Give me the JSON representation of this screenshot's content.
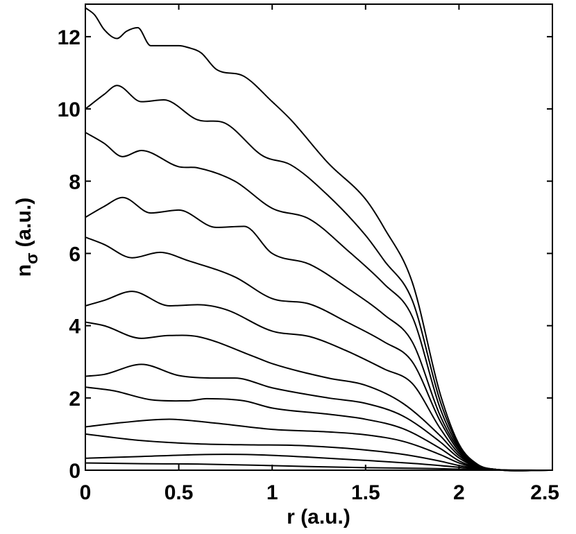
{
  "chart_data": {
    "type": "line",
    "title": "",
    "xlabel": "r (a.u.)",
    "ylabel": "n",
    "ylabel_subscript": "σ",
    "ylabel_suffix": "(a.u.)",
    "xlim": [
      0,
      2.5
    ],
    "ylim": [
      0,
      12.9
    ],
    "xticks": [
      0,
      0.5,
      1,
      1.5,
      2,
      2.5
    ],
    "xtick_labels": [
      "0",
      "0.5",
      "1",
      "1.5",
      "2",
      "2.5"
    ],
    "yticks": [
      0,
      2,
      4,
      6,
      8,
      10,
      12
    ],
    "ytick_labels": [
      "0",
      "2",
      "4",
      "6",
      "8",
      "10",
      "12"
    ],
    "grid": false,
    "line_color": "#000000",
    "series": [
      {
        "x": [
          0,
          0.3,
          0.6,
          0.9,
          1.2,
          1.5,
          1.8,
          2.0,
          2.1,
          2.2,
          2.5
        ],
        "y": [
          0.2,
          0.18,
          0.17,
          0.14,
          0.1,
          0.07,
          0.05,
          0.03,
          0.015,
          0.005,
          0
        ]
      },
      {
        "x": [
          0,
          0.3,
          0.6,
          0.75,
          0.9,
          1.2,
          1.5,
          1.8,
          2.0,
          2.1,
          2.2,
          2.5
        ],
        "y": [
          0.33,
          0.38,
          0.43,
          0.44,
          0.43,
          0.36,
          0.27,
          0.17,
          0.08,
          0.03,
          0.008,
          0
        ]
      },
      {
        "x": [
          0,
          0.3,
          0.6,
          0.9,
          1.1,
          1.3,
          1.5,
          1.7,
          1.9,
          2.0,
          2.1,
          2.2,
          2.5
        ],
        "y": [
          1.0,
          0.82,
          0.73,
          0.7,
          0.69,
          0.64,
          0.56,
          0.44,
          0.25,
          0.13,
          0.05,
          0.01,
          0
        ]
      },
      {
        "x": [
          0,
          0.2,
          0.45,
          0.7,
          1.0,
          1.3,
          1.5,
          1.7,
          1.9,
          2.0,
          2.1,
          2.2,
          2.5
        ],
        "y": [
          1.2,
          1.32,
          1.41,
          1.3,
          1.13,
          1.06,
          0.98,
          0.8,
          0.43,
          0.2,
          0.06,
          0.01,
          0
        ]
      },
      {
        "x": [
          0,
          0.15,
          0.35,
          0.55,
          0.65,
          0.85,
          1.0,
          1.3,
          1.5,
          1.7,
          1.9,
          2.0,
          2.1,
          2.2,
          2.5
        ],
        "y": [
          2.3,
          2.2,
          1.95,
          1.92,
          1.98,
          1.92,
          1.72,
          1.55,
          1.41,
          1.15,
          0.6,
          0.26,
          0.07,
          0.01,
          0
        ]
      },
      {
        "x": [
          0,
          0.1,
          0.3,
          0.5,
          0.7,
          0.8,
          1.0,
          1.3,
          1.5,
          1.7,
          1.9,
          2.0,
          2.1,
          2.2,
          2.5
        ],
        "y": [
          2.6,
          2.65,
          2.93,
          2.62,
          2.55,
          2.55,
          2.28,
          2.0,
          1.85,
          1.5,
          0.78,
          0.34,
          0.08,
          0.015,
          0
        ]
      },
      {
        "x": [
          0,
          0.1,
          0.3,
          0.45,
          0.6,
          0.9,
          1.0,
          1.3,
          1.5,
          1.7,
          1.9,
          2.0,
          2.1,
          2.2,
          2.5
        ],
        "y": [
          4.1,
          4.0,
          3.65,
          3.73,
          3.7,
          3.15,
          2.95,
          2.55,
          2.35,
          1.85,
          0.95,
          0.4,
          0.1,
          0.02,
          0
        ]
      },
      {
        "x": [
          0,
          0.1,
          0.25,
          0.45,
          0.6,
          0.75,
          1.0,
          1.2,
          1.4,
          1.6,
          1.75,
          1.9,
          2.0,
          2.1,
          2.2,
          2.5
        ],
        "y": [
          4.55,
          4.7,
          4.95,
          4.55,
          4.58,
          4.45,
          3.85,
          3.7,
          3.3,
          2.8,
          2.4,
          1.15,
          0.46,
          0.11,
          0.02,
          0
        ]
      },
      {
        "x": [
          0,
          0.1,
          0.25,
          0.4,
          0.55,
          0.8,
          1.0,
          1.2,
          1.4,
          1.6,
          1.75,
          1.9,
          2.0,
          2.1,
          2.2,
          2.5
        ],
        "y": [
          6.45,
          6.25,
          5.88,
          6.03,
          5.8,
          5.35,
          4.75,
          4.6,
          4.1,
          3.55,
          3.0,
          1.35,
          0.52,
          0.12,
          0.02,
          0
        ]
      },
      {
        "x": [
          0,
          0.1,
          0.2,
          0.35,
          0.5,
          0.7,
          0.85,
          1.0,
          1.2,
          1.4,
          1.6,
          1.75,
          1.9,
          2.0,
          2.1,
          2.2,
          2.5
        ],
        "y": [
          7.0,
          7.3,
          7.55,
          7.12,
          7.2,
          6.72,
          6.75,
          6.0,
          5.7,
          5.05,
          4.3,
          3.55,
          1.5,
          0.58,
          0.13,
          0.02,
          0
        ]
      },
      {
        "x": [
          0,
          0.1,
          0.2,
          0.3,
          0.5,
          0.6,
          0.8,
          1.0,
          1.2,
          1.4,
          1.6,
          1.75,
          1.9,
          2.0,
          2.1,
          2.2,
          2.5
        ],
        "y": [
          9.35,
          9.05,
          8.68,
          8.85,
          8.4,
          8.37,
          8.0,
          7.25,
          6.95,
          6.1,
          5.15,
          4.25,
          1.7,
          0.63,
          0.14,
          0.02,
          0
        ]
      },
      {
        "x": [
          0,
          0.1,
          0.17,
          0.3,
          0.42,
          0.6,
          0.75,
          0.95,
          1.1,
          1.3,
          1.5,
          1.6,
          1.75,
          1.9,
          2.0,
          2.1,
          2.2,
          2.5
        ],
        "y": [
          10.0,
          10.4,
          10.65,
          10.2,
          10.25,
          9.7,
          9.6,
          8.7,
          8.45,
          7.6,
          6.5,
          5.8,
          4.7,
          1.9,
          0.68,
          0.15,
          0.02,
          0
        ]
      },
      {
        "x": [
          0,
          0.05,
          0.1,
          0.17,
          0.22,
          0.28,
          0.35,
          0.5,
          0.55,
          0.62,
          0.7,
          0.85,
          1.0,
          1.1,
          1.3,
          1.5,
          1.6,
          1.75,
          1.9,
          2.0,
          2.1,
          2.2,
          2.5
        ],
        "y": [
          12.8,
          12.6,
          12.2,
          11.95,
          12.15,
          12.25,
          11.75,
          11.75,
          11.7,
          11.55,
          11.1,
          10.9,
          10.2,
          9.7,
          8.5,
          7.5,
          6.7,
          5.2,
          2.1,
          0.72,
          0.16,
          0.02,
          0
        ]
      }
    ]
  }
}
